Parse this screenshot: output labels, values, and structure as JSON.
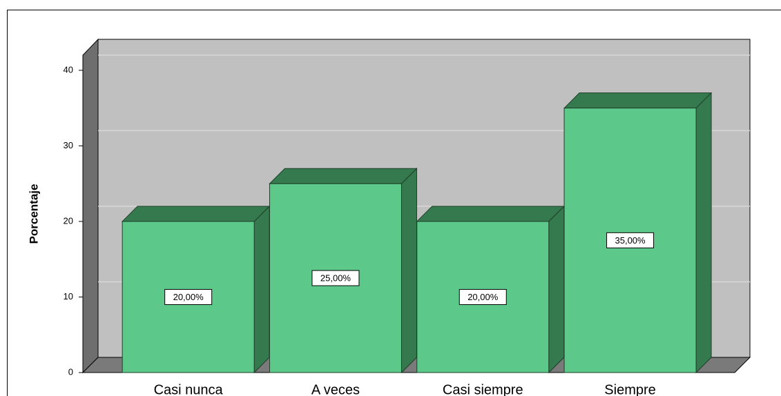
{
  "chart_data": {
    "type": "bar3d",
    "y_label": "Porcentaje",
    "categories": [
      "Casi nunca",
      "A veces",
      "Casi siempre",
      "Siempre"
    ],
    "values": [
      20,
      25,
      20,
      35
    ],
    "value_labels": [
      "20,00%",
      "25,00%",
      "20,00%",
      "35,00%"
    ],
    "color": "#5cc98a",
    "side_color": "#357a4e",
    "ylim": [
      0,
      42
    ],
    "yticks": [
      0,
      10,
      20,
      30,
      40
    ],
    "grid": true
  }
}
